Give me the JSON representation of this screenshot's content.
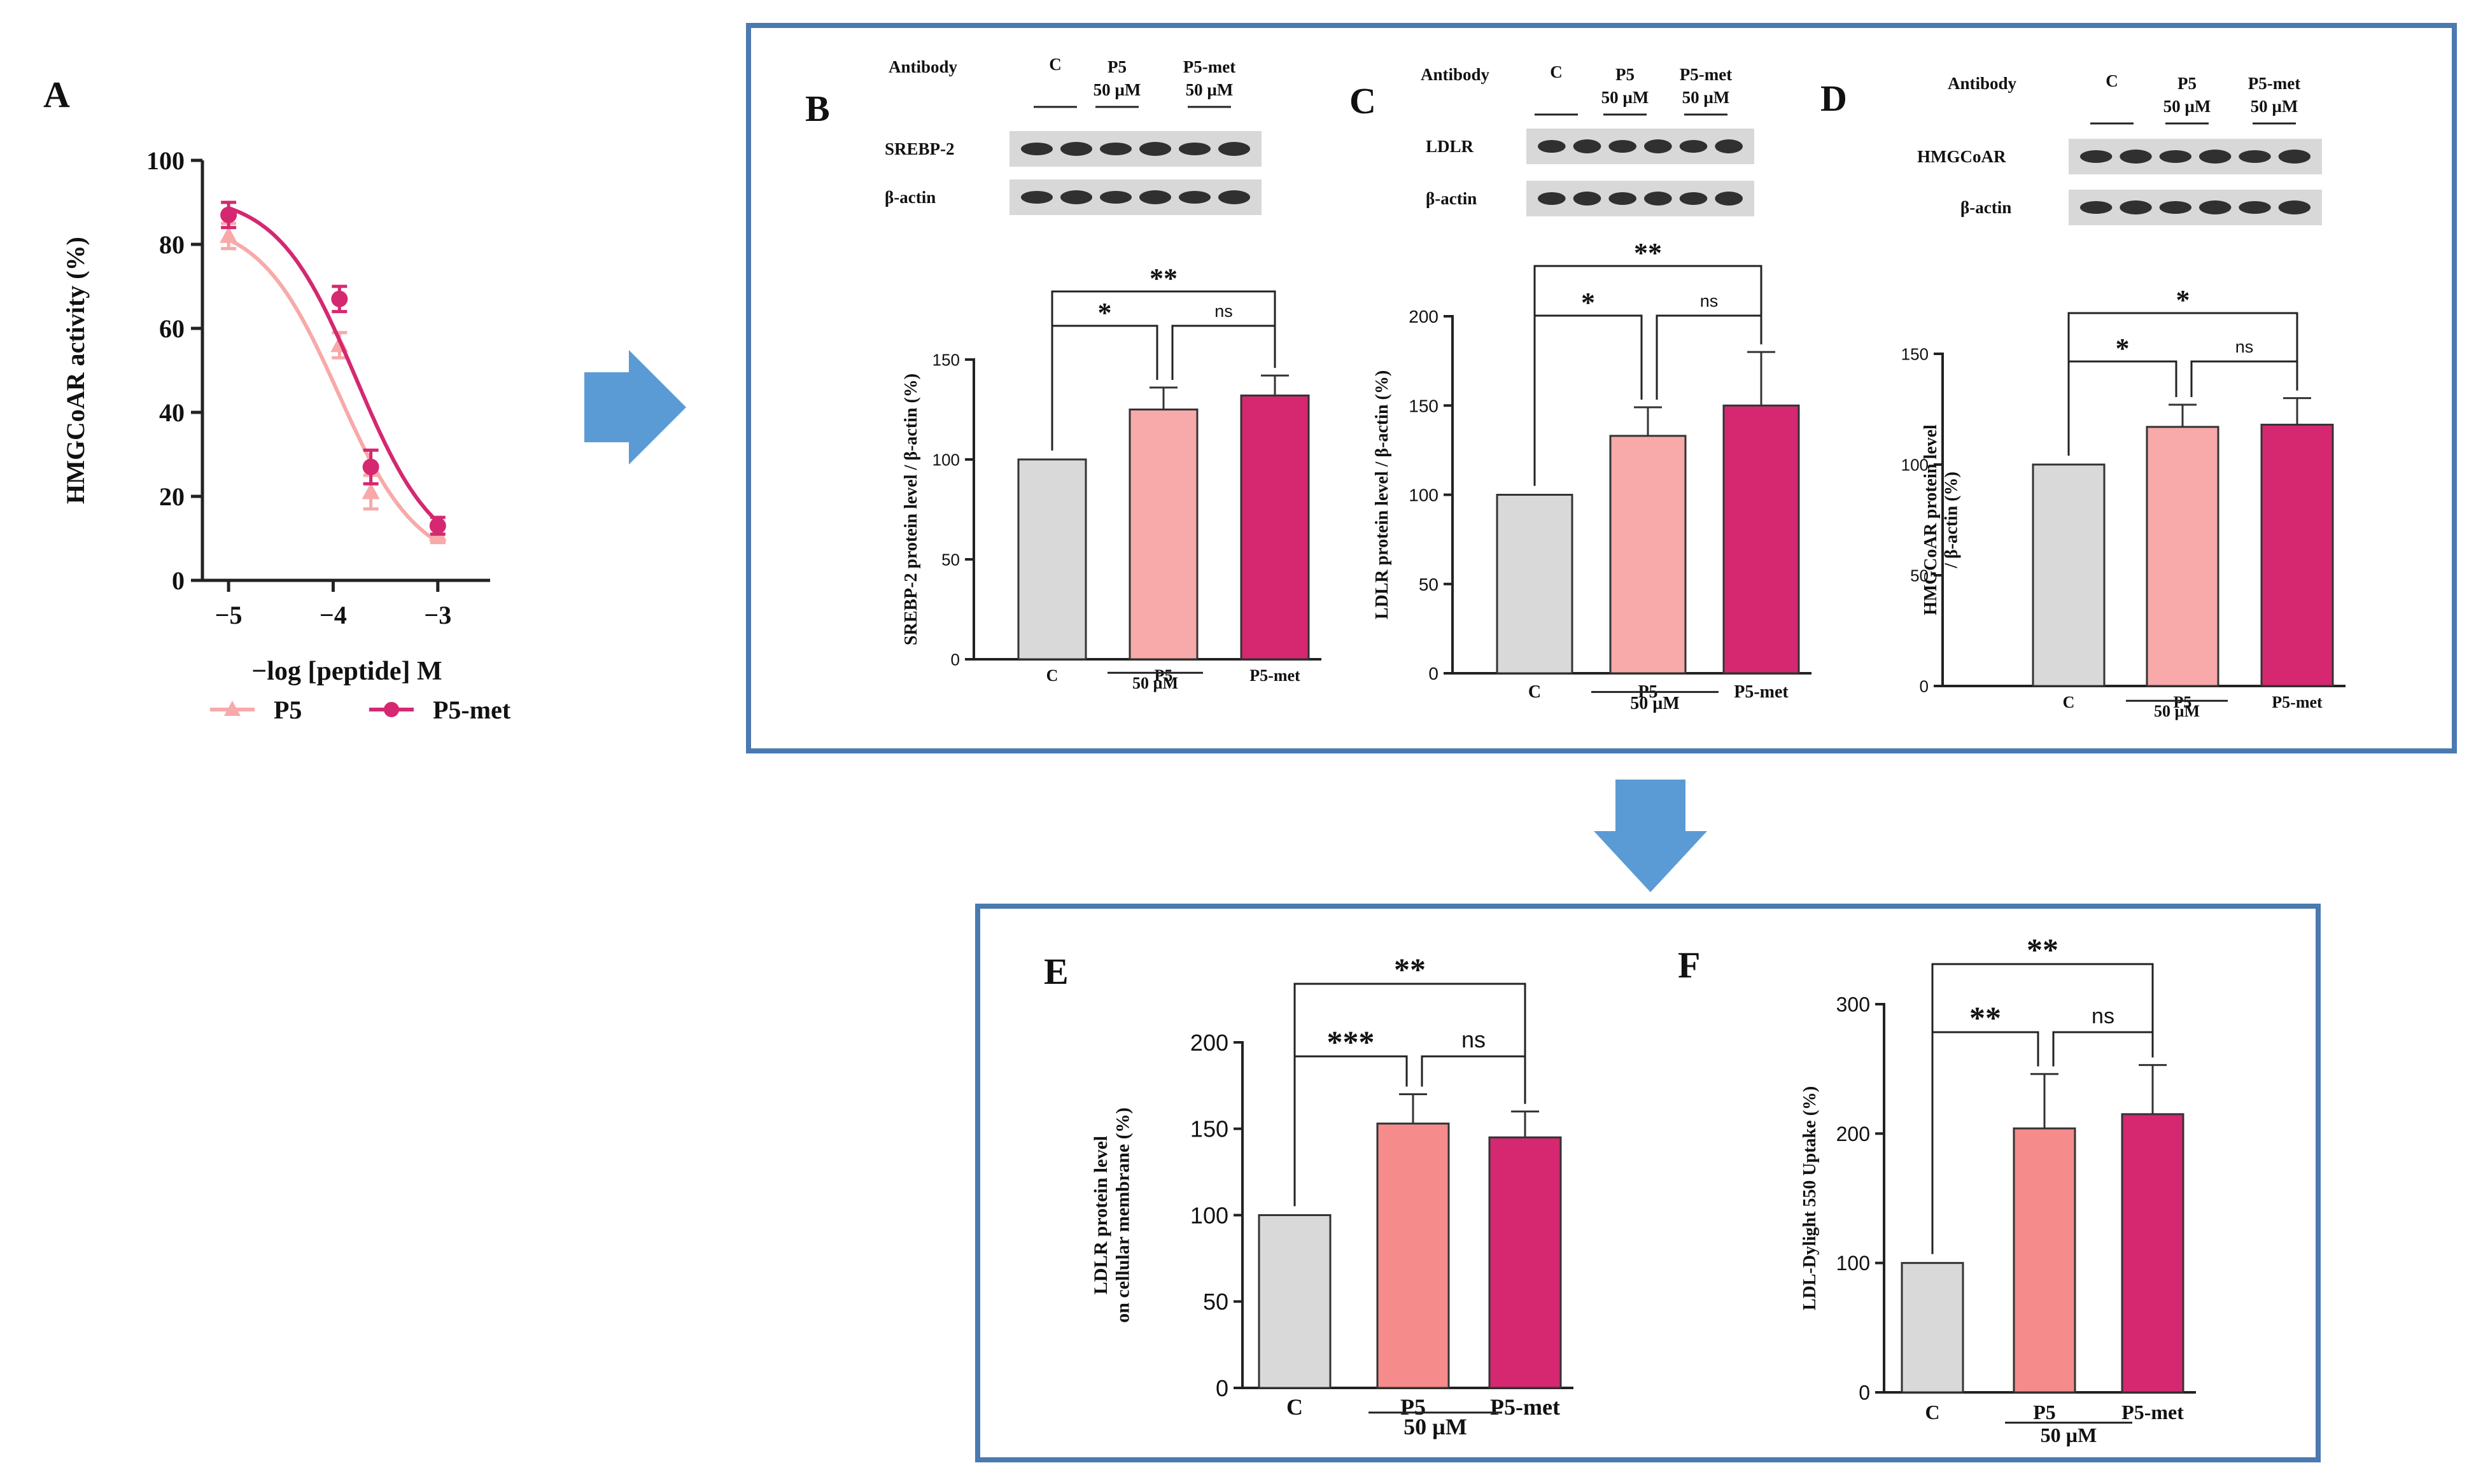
{
  "panels": {
    "A": "A",
    "B": "B",
    "C": "C",
    "D": "D",
    "E": "E",
    "F": "F"
  },
  "colors": {
    "control": "#d9d9d9",
    "p5": "#f8a9a9",
    "p5_e": "#f58b8b",
    "p5met": "#d52870",
    "frame": "#4a7ab0",
    "arrow": "#5b9bd5"
  },
  "blots": {
    "B": {
      "header": {
        "antibody": "Antibody",
        "c": "C",
        "p5": [
          "P5",
          "50 µM"
        ],
        "p5met": [
          "P5-met",
          "50 µM"
        ]
      },
      "rows": [
        "SREBP-2",
        "β-actin"
      ]
    },
    "C": {
      "header": {
        "antibody": "Antibody",
        "c": "C",
        "p5": [
          "P5",
          "50 µM"
        ],
        "p5met": [
          "P5-met",
          "50 µM"
        ]
      },
      "rows": [
        "LDLR",
        "β-actin"
      ]
    },
    "D": {
      "header": {
        "antibody": "Antibody",
        "c": "C",
        "p5": [
          "P5",
          "50 µM"
        ],
        "p5met": [
          "P5-met",
          "50 µM"
        ]
      },
      "rows": [
        "HMGCoAR",
        "β-actin"
      ]
    }
  },
  "chart_data": [
    {
      "id": "A",
      "type": "line",
      "xlabel": "−log [peptide] M",
      "ylabel": "HMGCoAR activity (%)",
      "xlim": [
        -5.25,
        -2.5
      ],
      "ylim": [
        0,
        100
      ],
      "x_ticks": [
        -5,
        -4,
        -3
      ],
      "x_tick_labels": [
        "−5",
        "−4",
        "−3"
      ],
      "y_ticks": [
        0,
        20,
        40,
        60,
        80,
        100
      ],
      "series": [
        {
          "name": "P5",
          "color": "#f8a9a9",
          "marker": "triangle",
          "x": [
            -5,
            -3.94,
            -3.64,
            -3
          ],
          "y": [
            82,
            56,
            21,
            11
          ],
          "err": [
            3,
            3,
            4,
            2
          ],
          "curve_ic50": -3.95,
          "curve_top": 86,
          "curve_bottom": 3,
          "curve_hill": 1.15
        },
        {
          "name": "P5-met",
          "color": "#d52870",
          "marker": "circle",
          "x": [
            -5,
            -3.94,
            -3.64,
            -3
          ],
          "y": [
            87,
            67,
            27,
            13
          ],
          "err": [
            3,
            3,
            4,
            2
          ],
          "curve_ic50": -3.78,
          "curve_top": 92,
          "curve_bottom": 4,
          "curve_hill": 1.15
        }
      ]
    },
    {
      "id": "B",
      "type": "bar",
      "ylabel": "SREBP-2 protein level / β-actin (%)",
      "categories": [
        "C",
        "P5",
        "P5-met"
      ],
      "group_label": "50 µM",
      "values": [
        100,
        125,
        132
      ],
      "errors": [
        0,
        11,
        10
      ],
      "ylim": [
        0,
        150
      ],
      "y_ticks": [
        0,
        50,
        100,
        150
      ],
      "comparisons": [
        {
          "from": 0,
          "to": 1,
          "label": "*"
        },
        {
          "from": 1,
          "to": 2,
          "label": "ns"
        },
        {
          "from": 0,
          "to": 2,
          "label": "**"
        }
      ]
    },
    {
      "id": "C",
      "type": "bar",
      "ylabel": "LDLR protein level / β-actin (%)",
      "categories": [
        "C",
        "P5",
        "P5-met"
      ],
      "group_label": "50 µM",
      "values": [
        100,
        133,
        150
      ],
      "errors": [
        0,
        16,
        30
      ],
      "ylim": [
        0,
        200
      ],
      "y_ticks": [
        0,
        50,
        100,
        150,
        200
      ],
      "comparisons": [
        {
          "from": 0,
          "to": 1,
          "label": "*"
        },
        {
          "from": 1,
          "to": 2,
          "label": "ns"
        },
        {
          "from": 0,
          "to": 2,
          "label": "**"
        }
      ]
    },
    {
      "id": "D",
      "type": "bar",
      "ylabel": "HMGCoAR protein level / β-actin (%)",
      "categories": [
        "C",
        "P5",
        "P5-met"
      ],
      "group_label": "50 µM",
      "values": [
        100,
        117,
        118
      ],
      "errors": [
        0,
        10,
        12
      ],
      "ylim": [
        0,
        150
      ],
      "y_ticks": [
        0,
        50,
        100,
        150
      ],
      "comparisons": [
        {
          "from": 0,
          "to": 1,
          "label": "*"
        },
        {
          "from": 1,
          "to": 2,
          "label": "ns"
        },
        {
          "from": 0,
          "to": 2,
          "label": "*"
        }
      ]
    },
    {
      "id": "E",
      "type": "bar",
      "ylabel": "LDLR protein level on cellular membrane (%)",
      "categories": [
        "C",
        "P5",
        "P5-met"
      ],
      "group_label": "50 µM",
      "values": [
        100,
        153,
        145
      ],
      "errors": [
        0,
        17,
        15
      ],
      "ylim": [
        0,
        200
      ],
      "y_ticks": [
        0,
        50,
        100,
        150,
        200
      ],
      "comparisons": [
        {
          "from": 0,
          "to": 1,
          "label": "***"
        },
        {
          "from": 1,
          "to": 2,
          "label": "ns"
        },
        {
          "from": 0,
          "to": 2,
          "label": "**"
        }
      ]
    },
    {
      "id": "F",
      "type": "bar",
      "ylabel": "LDL-Dylight 550 Uptake (%)",
      "categories": [
        "C",
        "P5",
        "P5-met"
      ],
      "group_label": "50 µM",
      "values": [
        100,
        204,
        215
      ],
      "errors": [
        0,
        42,
        38
      ],
      "ylim": [
        0,
        300
      ],
      "y_ticks": [
        0,
        100,
        200,
        300
      ],
      "comparisons": [
        {
          "from": 0,
          "to": 1,
          "label": "**"
        },
        {
          "from": 1,
          "to": 2,
          "label": "ns"
        },
        {
          "from": 0,
          "to": 2,
          "label": "**"
        }
      ]
    }
  ]
}
